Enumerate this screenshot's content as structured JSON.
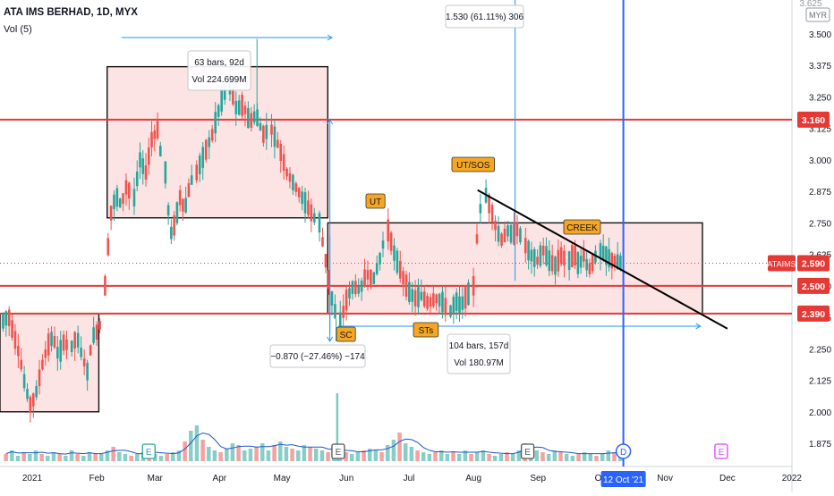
{
  "header": {
    "title": "ATA IMS BERHAD, 1D, MYX",
    "volume_label": "Vol (5)",
    "currency": "MYR"
  },
  "colors": {
    "up": "#26a69a",
    "down": "#ef5350",
    "level_line": "#e53935",
    "level_badge": "#e53935",
    "box_fill": "#fce4e4",
    "label_bg": "#f5a623",
    "measure_blue": "#2196f3",
    "volume_line": "#1e56c9",
    "trendline": "#000000",
    "current_badge": "#e53935",
    "date_badge": "#2962ff"
  },
  "chart_data": {
    "type": "candlestick",
    "title": "ATA IMS BERHAD, 1D, MYX",
    "y_axis": {
      "range": [
        1.8,
        3.65
      ],
      "tick_labels": [
        "3.500",
        "3.375",
        "3.250",
        "3.125",
        "3.000",
        "2.875",
        "2.750",
        "2.625",
        "2.500",
        "2.375",
        "2.250",
        "2.125",
        "2.000",
        "1.875"
      ],
      "top_partial": "3.625"
    },
    "x_axis": {
      "range": [
        "2020-12-18",
        "2022-01-08"
      ],
      "ticks": [
        {
          "label": "2021",
          "date": "2021-01-01"
        },
        {
          "label": "Feb",
          "date": "2021-02-01"
        },
        {
          "label": "Mar",
          "date": "2021-03-01"
        },
        {
          "label": "Apr",
          "date": "2021-04-01"
        },
        {
          "label": "May",
          "date": "2021-05-01"
        },
        {
          "label": "Jun",
          "date": "2021-06-01"
        },
        {
          "label": "Jul",
          "date": "2021-07-01"
        },
        {
          "label": "Aug",
          "date": "2021-08-01"
        },
        {
          "label": "Sep",
          "date": "2021-09-01"
        },
        {
          "label": "Oc",
          "date": "2021-10-01"
        },
        {
          "label": "Nov",
          "date": "2021-11-01"
        },
        {
          "label": "Dec",
          "date": "2021-12-01"
        },
        {
          "label": "2022",
          "date": "2022-01-01"
        }
      ],
      "current_date_badge": {
        "label": "12 Oct '21",
        "date": "2021-10-12"
      }
    },
    "horizontal_levels": [
      {
        "value": 3.16,
        "label": "3.160"
      },
      {
        "value": 2.5,
        "label": "2.500"
      },
      {
        "value": 2.39,
        "label": "2.390"
      }
    ],
    "current_price": {
      "symbol": "ATAIMS",
      "value": 2.59,
      "label": "2.590"
    },
    "price_segments": [
      {
        "from": "2020-12-18",
        "to": "2021-01-19",
        "points": [
          2.36,
          2.38,
          2.3,
          2.22,
          2.1,
          2.02,
          2.08,
          2.18,
          2.26,
          2.3,
          2.22,
          2.28,
          2.25
        ]
      },
      {
        "from": "2021-01-20",
        "to": "2021-02-04",
        "points": [
          2.26,
          2.3,
          2.22,
          2.16,
          2.3,
          2.32,
          2.38
        ]
      },
      {
        "from": "2021-02-05",
        "to": "2021-02-18",
        "points": [
          2.5,
          2.78,
          2.86,
          2.82,
          2.9,
          2.85
        ]
      },
      {
        "from": "2021-02-19",
        "to": "2021-03-05",
        "points": [
          2.85,
          3.0,
          2.95,
          3.08,
          3.12,
          2.95
        ]
      },
      {
        "from": "2021-03-06",
        "to": "2021-03-20",
        "points": [
          2.95,
          2.7,
          2.75,
          2.85,
          2.8,
          2.9,
          2.95
        ]
      },
      {
        "from": "2021-03-21",
        "to": "2021-04-05",
        "points": [
          2.95,
          3.0,
          3.05,
          3.1,
          3.18,
          3.25,
          3.3
        ]
      },
      {
        "from": "2021-04-06",
        "to": "2021-04-25",
        "points": [
          3.3,
          3.2,
          3.22,
          3.15,
          3.18,
          3.1,
          3.12
        ]
      },
      {
        "from": "2021-04-26",
        "to": "2021-05-18",
        "points": [
          3.12,
          3.05,
          2.95,
          2.9,
          2.85,
          2.8,
          2.75
        ]
      },
      {
        "from": "2021-05-19",
        "to": "2021-05-28",
        "points": [
          2.75,
          2.6,
          2.45,
          2.35
        ]
      },
      {
        "from": "2021-05-29",
        "to": "2021-06-20",
        "points": [
          2.35,
          2.45,
          2.5,
          2.48,
          2.55,
          2.52,
          2.6,
          2.72
        ]
      },
      {
        "from": "2021-06-21",
        "to": "2021-07-20",
        "points": [
          2.72,
          2.62,
          2.55,
          2.48,
          2.45,
          2.46,
          2.43,
          2.45,
          2.44,
          2.4
        ]
      },
      {
        "from": "2021-07-21",
        "to": "2021-07-31",
        "points": [
          2.4,
          2.44,
          2.42,
          2.46,
          2.48
        ]
      },
      {
        "from": "2021-08-01",
        "to": "2021-08-06",
        "points": [
          2.5,
          2.78,
          2.86
        ]
      },
      {
        "from": "2021-08-07",
        "to": "2021-08-25",
        "points": [
          2.86,
          2.8,
          2.72,
          2.68,
          2.72,
          2.7,
          2.73,
          2.66
        ]
      },
      {
        "from": "2021-08-26",
        "to": "2021-09-15",
        "points": [
          2.66,
          2.62,
          2.6,
          2.64,
          2.6,
          2.58,
          2.62,
          2.6
        ]
      },
      {
        "from": "2021-09-16",
        "to": "2021-09-30",
        "points": [
          2.6,
          2.63,
          2.58,
          2.62,
          2.56,
          2.6,
          2.64
        ]
      },
      {
        "from": "2021-10-01",
        "to": "2021-10-12",
        "points": [
          2.64,
          2.6,
          2.59
        ]
      }
    ],
    "volume_indicator": {
      "name": "Vol (5)",
      "bars_relative": [
        0.2,
        0.3,
        0.15,
        0.25,
        0.2,
        0.3,
        0.2,
        0.15,
        0.25,
        0.2,
        0.15,
        0.3,
        0.2,
        0.15,
        0.25,
        0.2,
        0.2,
        0.3,
        0.4,
        0.25,
        0.2,
        0.15,
        0.2,
        0.25,
        0.3,
        0.2,
        0.15,
        0.2,
        0.25,
        0.3,
        0.55,
        0.85,
        1.0,
        0.6,
        0.4,
        0.3,
        0.25,
        0.35,
        0.5,
        0.45,
        0.3,
        0.35,
        0.4,
        0.5,
        0.3,
        0.45,
        0.55,
        0.4,
        0.35,
        0.3,
        0.45,
        0.4,
        0.35,
        0.3,
        0.25,
        0.35,
        0.3,
        0.25,
        0.2,
        0.25,
        0.3,
        0.35,
        0.3,
        0.25,
        0.45,
        0.6,
        0.8,
        0.5,
        0.4,
        0.3,
        0.25,
        0.2,
        0.25,
        0.3,
        0.2,
        0.25,
        0.2,
        0.3,
        0.2,
        0.25,
        0.3,
        0.2,
        0.15,
        0.2,
        0.25,
        0.2,
        0.3,
        0.5,
        0.4,
        0.3,
        0.25,
        0.2,
        0.3,
        0.25,
        0.2,
        0.15,
        0.2,
        0.25,
        0.2,
        0.15,
        0.2,
        0.3,
        0.25,
        0.2
      ],
      "spike_relative": 1.9
    },
    "event_markers": [
      {
        "label": "E",
        "date": "2021-02-26",
        "color": "#26a69a"
      },
      {
        "label": "E",
        "date": "2021-05-28",
        "color": "#555555"
      },
      {
        "label": "E",
        "date": "2021-08-27",
        "color": "#555555"
      },
      {
        "label": "D",
        "date": "2021-10-12",
        "color": "#2962ff"
      },
      {
        "label": "E",
        "date": "2021-11-28",
        "color": "#e040fb"
      }
    ]
  },
  "annotations": {
    "box1": {
      "line1": "63 bars, 92d",
      "line2": "Vol 224.699M"
    },
    "measure_top": "1.530 (61.11%) 306",
    "measure_bottom": "−0.870 (−27.46%) −174",
    "box2": {
      "line1": "104 bars, 157d",
      "line2": "Vol 180.97M"
    },
    "labels": {
      "ut": "UT",
      "ut_sos": "UT/SOS",
      "creek": "CREEK",
      "sc": "SC",
      "sts": "STs"
    }
  }
}
